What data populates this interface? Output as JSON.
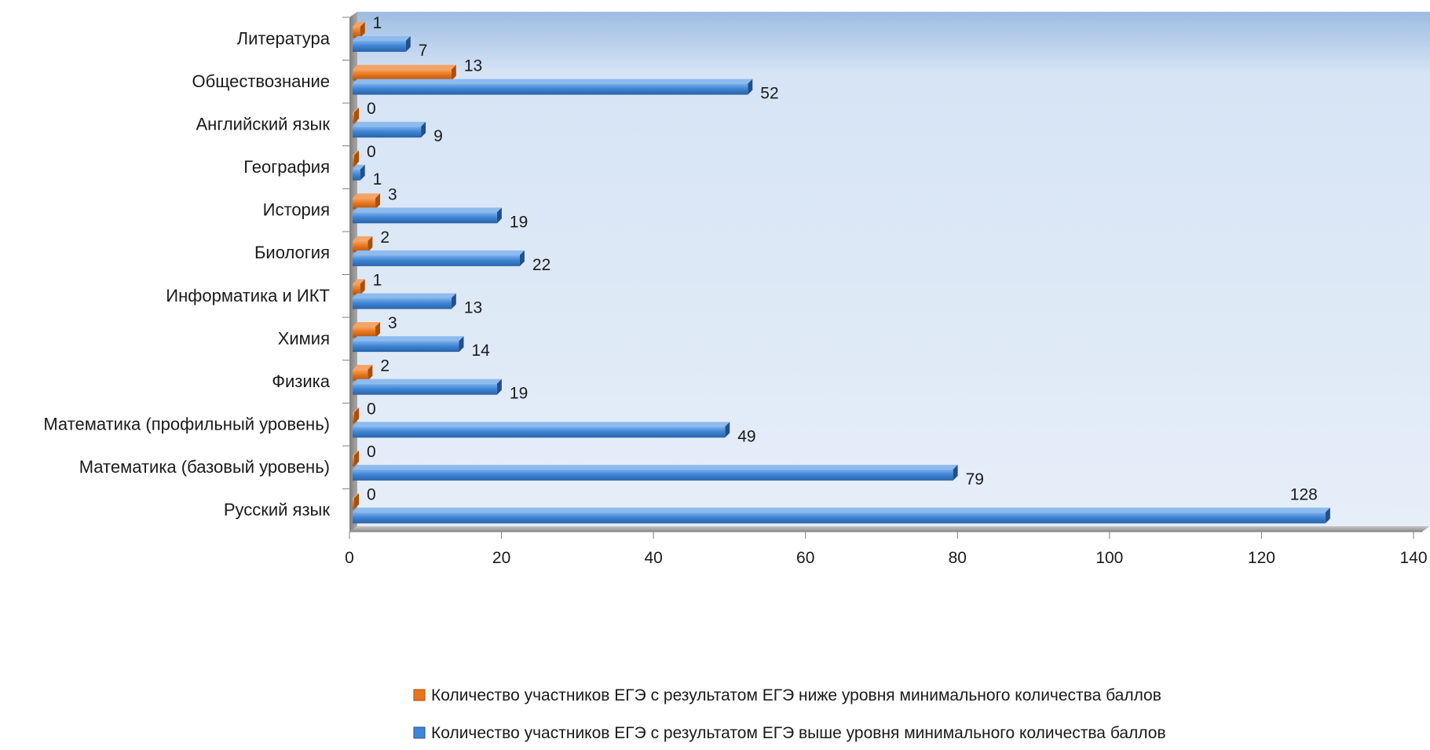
{
  "chart_data": {
    "type": "bar",
    "orientation": "horizontal",
    "categories": [
      "Русский язык",
      "Математика (базовый уровень)",
      "Математика (профильный уровень)",
      "Физика",
      "Химия",
      "Информатика и ИКТ",
      "Биология",
      "История",
      "География",
      "Английский язык",
      "Обществознание",
      "Литература"
    ],
    "series": [
      {
        "name": "Количество участников ЕГЭ с результатом ЕГЭ ниже уровня минимального количества баллов",
        "color": "#E8761E",
        "values": [
          0,
          0,
          0,
          2,
          3,
          1,
          2,
          3,
          0,
          0,
          13,
          1
        ]
      },
      {
        "name": "Количество участников ЕГЭ с результатом ЕГЭ выше уровня минимального количества баллов",
        "color": "#3F86D6",
        "values": [
          128,
          79,
          49,
          19,
          14,
          13,
          22,
          19,
          1,
          9,
          52,
          7
        ]
      }
    ],
    "xlim": [
      0,
      140
    ],
    "x_ticks": [
      0,
      20,
      40,
      60,
      80,
      100,
      120,
      140
    ],
    "legend_position": "bottom",
    "grid": false,
    "data_labels": true
  }
}
